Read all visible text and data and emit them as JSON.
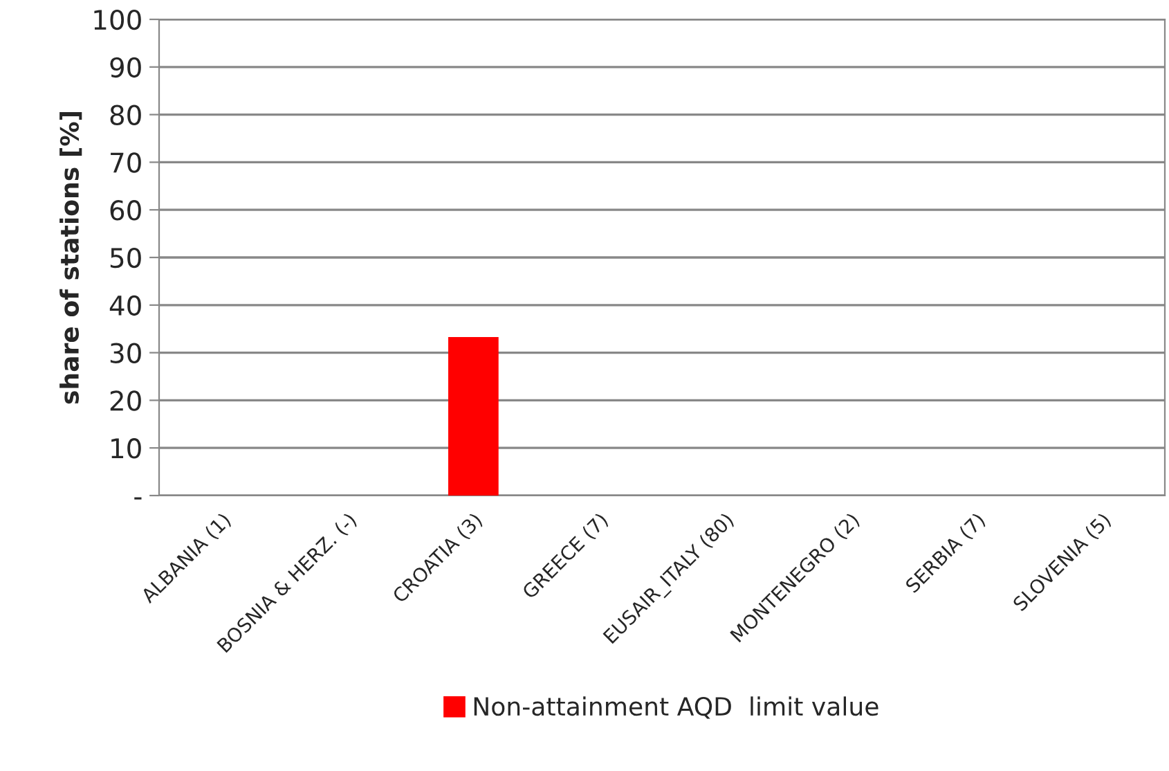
{
  "chart_data": {
    "type": "bar",
    "ylabel": "share of stations [%]",
    "categories": [
      "ALBANIA (1)",
      "BOSNIA & HERZ. (-)",
      "CROATIA (3)",
      "GREECE (7)",
      "EUSAIR_ITALY (80)",
      "MONTENEGRO (2)",
      "SERBIA (7)",
      "SLOVENIA (5)"
    ],
    "series": [
      {
        "name": "Non-attainment AQD  limit value",
        "color": "#ff0000",
        "values": [
          0,
          0,
          33.3,
          0,
          0,
          0,
          0,
          0
        ]
      }
    ],
    "ylim": [
      0,
      100
    ],
    "yticks": [
      {
        "value": 0,
        "label": "-"
      },
      10,
      20,
      30,
      40,
      50,
      60,
      70,
      80,
      90,
      100
    ],
    "grid": "y",
    "legend": "bottom"
  }
}
